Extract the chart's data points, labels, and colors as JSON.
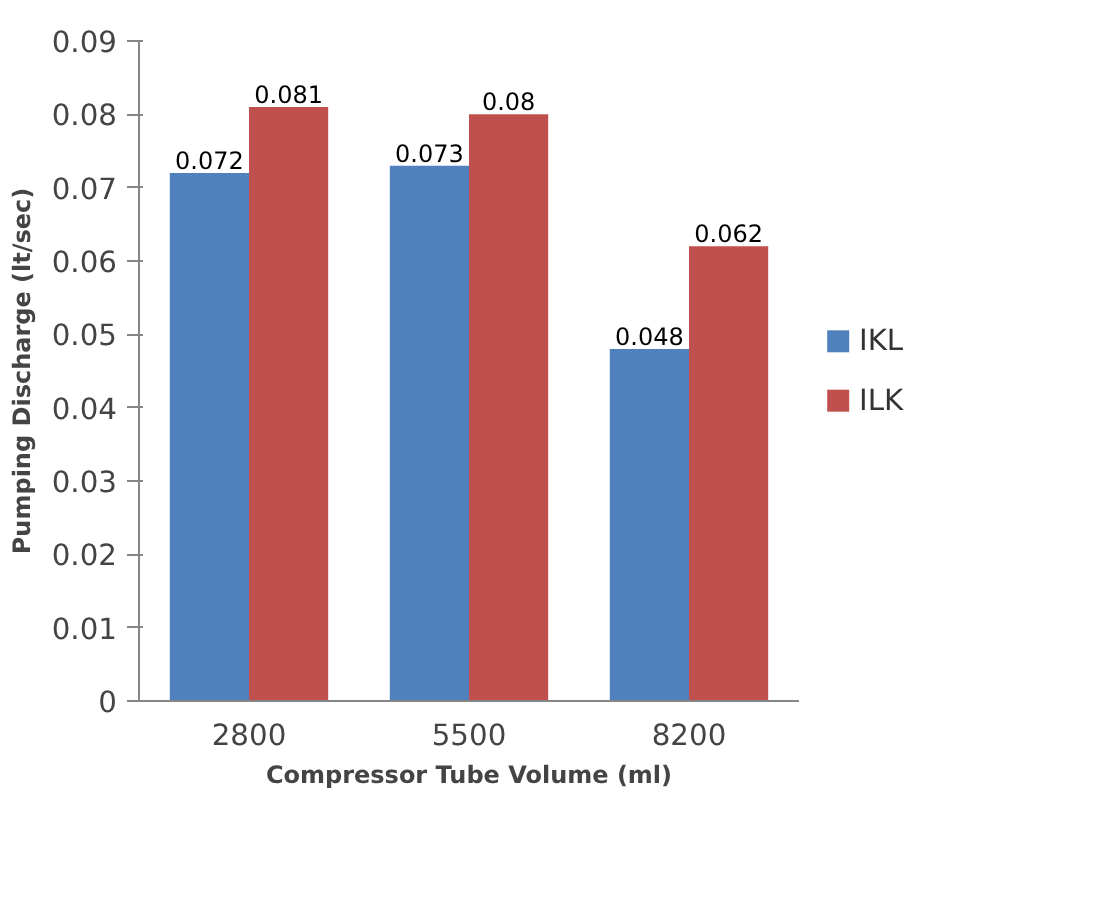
{
  "chart_data": {
    "type": "bar",
    "xlabel": "Compressor Tube Volume (ml)",
    "ylabel": "Pumping Discharge (lt/sec)",
    "categories": [
      "2800",
      "5500",
      "8200"
    ],
    "series": [
      {
        "name": "IKL",
        "color": "#4f81bd",
        "values": [
          0.072,
          0.073,
          0.048
        ]
      },
      {
        "name": "ILK",
        "color": "#c0504d",
        "values": [
          0.081,
          0.08,
          0.062
        ]
      }
    ],
    "ylim": [
      0,
      0.09
    ],
    "yticks": [
      0,
      0.01,
      0.02,
      0.03,
      0.04,
      0.05,
      0.06,
      0.07,
      0.08,
      0.09
    ],
    "data_labels": true,
    "grid": false,
    "legend": "right"
  }
}
